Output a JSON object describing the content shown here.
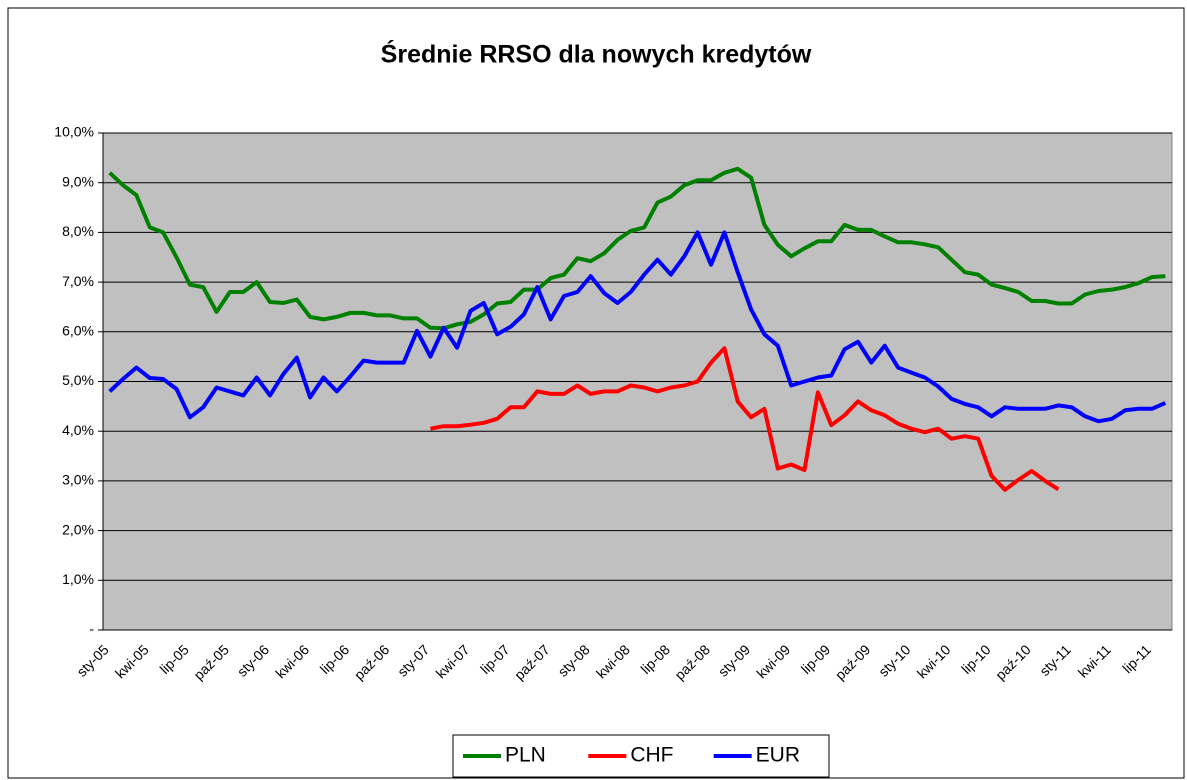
{
  "chart_data": {
    "type": "line",
    "title": "Średnie RRSO dla nowych kredytów",
    "categories": [
      "sty-05",
      null,
      null,
      "kwi-05",
      null,
      null,
      "lip-05",
      null,
      null,
      "paź-05",
      null,
      null,
      "sty-06",
      null,
      null,
      "kwi-06",
      null,
      null,
      "lip-06",
      null,
      null,
      "paź-06",
      null,
      null,
      "sty-07",
      null,
      null,
      "kwi-07",
      null,
      null,
      "lip-07",
      null,
      null,
      "paź-07",
      null,
      null,
      "sty-08",
      null,
      null,
      "kwi-08",
      null,
      null,
      "lip-08",
      null,
      null,
      "paź-08",
      null,
      null,
      "sty-09",
      null,
      null,
      "kwi-09",
      null,
      null,
      "lip-09",
      null,
      null,
      "paź-09",
      null,
      null,
      "sty-10",
      null,
      null,
      "kwi-10",
      null,
      null,
      "lip-10",
      null,
      null,
      "paź-10",
      null,
      null,
      "sty-11",
      null,
      null,
      "kwi-11",
      null,
      null,
      "lip-11",
      null
    ],
    "series": [
      {
        "name": "PLN",
        "color": "#008000",
        "values": [
          9.2,
          8.95,
          8.75,
          8.1,
          8.0,
          7.5,
          6.95,
          6.9,
          6.4,
          6.8,
          6.8,
          7.0,
          6.6,
          6.58,
          6.65,
          6.3,
          6.25,
          6.3,
          6.38,
          6.38,
          6.33,
          6.33,
          6.27,
          6.27,
          6.08,
          6.07,
          6.15,
          6.2,
          6.35,
          6.57,
          6.6,
          6.85,
          6.85,
          7.08,
          7.15,
          7.48,
          7.42,
          7.58,
          7.85,
          8.03,
          8.1,
          8.6,
          8.72,
          8.95,
          9.05,
          9.05,
          9.2,
          9.28,
          9.1,
          8.15,
          7.75,
          7.52,
          7.68,
          7.82,
          7.82,
          8.15,
          8.05,
          8.05,
          7.92,
          7.8,
          7.8,
          7.76,
          7.7,
          7.45,
          7.2,
          7.15,
          6.95,
          6.88,
          6.8,
          6.62,
          6.62,
          6.57,
          6.57,
          6.75,
          6.82,
          6.85,
          6.9,
          6.98,
          7.1,
          7.12
        ]
      },
      {
        "name": "CHF",
        "color": "#ff0000",
        "values": [
          null,
          null,
          null,
          null,
          null,
          null,
          null,
          null,
          null,
          null,
          null,
          null,
          null,
          null,
          null,
          null,
          null,
          null,
          null,
          null,
          null,
          null,
          null,
          null,
          4.05,
          4.1,
          4.1,
          4.13,
          4.17,
          4.25,
          4.48,
          4.48,
          4.8,
          4.75,
          4.75,
          4.92,
          4.75,
          4.8,
          4.8,
          4.92,
          4.88,
          4.8,
          4.88,
          4.92,
          5.0,
          5.38,
          5.67,
          4.6,
          4.28,
          4.45,
          3.25,
          3.33,
          3.22,
          4.78,
          4.12,
          4.32,
          4.6,
          4.42,
          4.32,
          4.15,
          4.05,
          3.98,
          4.05,
          3.85,
          3.9,
          3.85,
          3.1,
          2.82,
          3.02,
          3.2,
          3.0,
          2.83,
          null,
          null,
          null,
          null,
          null,
          null,
          null,
          null
        ]
      },
      {
        "name": "EUR",
        "color": "#0000ff",
        "values": [
          4.8,
          5.05,
          5.28,
          5.07,
          5.05,
          4.85,
          4.28,
          4.48,
          4.88,
          4.8,
          4.72,
          5.08,
          4.72,
          5.15,
          5.48,
          4.68,
          5.08,
          4.8,
          5.1,
          5.42,
          5.38,
          5.38,
          5.38,
          6.02,
          5.5,
          6.08,
          5.68,
          6.42,
          6.58,
          5.95,
          6.1,
          6.35,
          6.9,
          6.25,
          6.72,
          6.8,
          7.12,
          6.78,
          6.58,
          6.8,
          7.15,
          7.45,
          7.15,
          7.52,
          8.0,
          7.35,
          8.0,
          7.2,
          6.45,
          5.95,
          5.72,
          4.92,
          5.0,
          5.08,
          5.12,
          5.65,
          5.8,
          5.38,
          5.72,
          5.28,
          5.18,
          5.08,
          4.9,
          4.65,
          4.55,
          4.48,
          4.3,
          4.48,
          4.45,
          4.45,
          4.45,
          4.52,
          4.48,
          4.3,
          4.2,
          4.25,
          4.42,
          4.45,
          4.45,
          4.57
        ]
      }
    ],
    "ylim": [
      0,
      10
    ],
    "yticks": [
      {
        "value": 0,
        "label": "-"
      },
      {
        "value": 1,
        "label": "1,0%"
      },
      {
        "value": 2,
        "label": "2,0%"
      },
      {
        "value": 3,
        "label": "3,0%"
      },
      {
        "value": 4,
        "label": "4,0%"
      },
      {
        "value": 5,
        "label": "5,0%"
      },
      {
        "value": 6,
        "label": "6,0%"
      },
      {
        "value": 7,
        "label": "7,0%"
      },
      {
        "value": 8,
        "label": "8,0%"
      },
      {
        "value": 9,
        "label": "9,0%"
      },
      {
        "value": 10,
        "label": "10,0%"
      }
    ],
    "grid": true,
    "legend": "bottom",
    "plot_background": "#c0c0c0"
  }
}
